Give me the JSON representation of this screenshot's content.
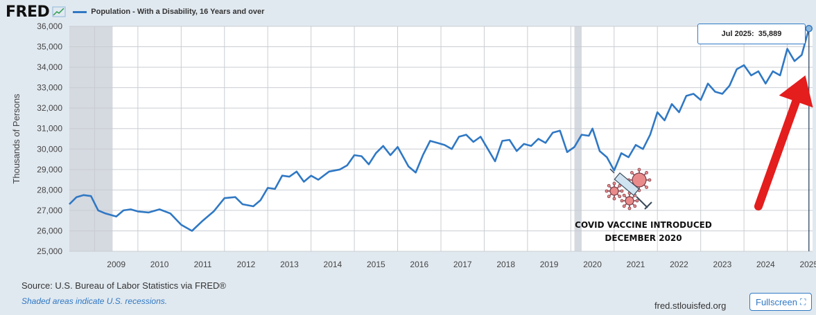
{
  "header": {
    "logo_text": "FRED",
    "legend_label": "Population - With a Disability, 16 Years and over"
  },
  "footer": {
    "source": "Source: U.S. Bureau of Labor Statistics via FRED®",
    "recession_note": "Shaded areas indicate U.S. recessions.",
    "site": "fred.stlouisfed.org",
    "fullscreen_label": "Fullscreen"
  },
  "tooltip": {
    "date": "Jul 2025:",
    "value": "35,889"
  },
  "annotation": {
    "line1": "COVID VACCINE INTRODUCED",
    "line2": "DECEMBER 2020"
  },
  "colors": {
    "series": "#2f78c4",
    "arrow": "#e41d1d",
    "background": "#e1e9f0",
    "plot": "#ffffff",
    "recession": "#d5d9e0"
  },
  "icons": [
    "chart-logo-icon",
    "virus-syringe-icon",
    "fullscreen-icon"
  ],
  "chart_data": {
    "type": "line",
    "title": "",
    "xlabel": "",
    "ylabel": "Thousands of Persons",
    "ylim": [
      25000,
      36000
    ],
    "xlim": [
      "2008-06",
      "2025-08"
    ],
    "yticks": [
      "25,000",
      "26,000",
      "27,000",
      "28,000",
      "29,000",
      "30,000",
      "31,000",
      "32,000",
      "33,000",
      "34,000",
      "35,000",
      "36,000"
    ],
    "xticks": [
      "2009",
      "2010",
      "2011",
      "2012",
      "2013",
      "2014",
      "2015",
      "2016",
      "2017",
      "2018",
      "2019",
      "2020",
      "2021",
      "2022",
      "2023",
      "2024",
      "2025"
    ],
    "grid": true,
    "recessions": [
      [
        "2008-06",
        "2009-06"
      ],
      [
        "2020-02",
        "2020-04"
      ]
    ],
    "series": [
      {
        "name": "Population - With a Disability, 16 Years and over",
        "points": [
          [
            "2008-06",
            27300
          ],
          [
            "2008-08",
            27650
          ],
          [
            "2008-10",
            27750
          ],
          [
            "2008-12",
            27700
          ],
          [
            "2009-02",
            27000
          ],
          [
            "2009-04",
            26850
          ],
          [
            "2009-07",
            26700
          ],
          [
            "2009-09",
            27000
          ],
          [
            "2009-11",
            27050
          ],
          [
            "2010-01",
            26950
          ],
          [
            "2010-04",
            26900
          ],
          [
            "2010-07",
            27050
          ],
          [
            "2010-10",
            26850
          ],
          [
            "2011-01",
            26300
          ],
          [
            "2011-04",
            26000
          ],
          [
            "2011-07",
            26500
          ],
          [
            "2011-10",
            26950
          ],
          [
            "2012-01",
            27600
          ],
          [
            "2012-04",
            27650
          ],
          [
            "2012-06",
            27300
          ],
          [
            "2012-09",
            27200
          ],
          [
            "2012-11",
            27500
          ],
          [
            "2013-01",
            28100
          ],
          [
            "2013-03",
            28050
          ],
          [
            "2013-05",
            28700
          ],
          [
            "2013-07",
            28650
          ],
          [
            "2013-09",
            28900
          ],
          [
            "2013-11",
            28400
          ],
          [
            "2014-01",
            28700
          ],
          [
            "2014-03",
            28500
          ],
          [
            "2014-06",
            28900
          ],
          [
            "2014-09",
            29000
          ],
          [
            "2014-11",
            29200
          ],
          [
            "2015-01",
            29700
          ],
          [
            "2015-03",
            29650
          ],
          [
            "2015-05",
            29250
          ],
          [
            "2015-07",
            29800
          ],
          [
            "2015-09",
            30150
          ],
          [
            "2015-11",
            29700
          ],
          [
            "2016-01",
            30100
          ],
          [
            "2016-04",
            29150
          ],
          [
            "2016-06",
            28850
          ],
          [
            "2016-08",
            29700
          ],
          [
            "2016-10",
            30400
          ],
          [
            "2016-12",
            30300
          ],
          [
            "2017-02",
            30200
          ],
          [
            "2017-04",
            30000
          ],
          [
            "2017-06",
            30600
          ],
          [
            "2017-08",
            30700
          ],
          [
            "2017-10",
            30350
          ],
          [
            "2017-12",
            30600
          ],
          [
            "2018-02",
            30000
          ],
          [
            "2018-04",
            29400
          ],
          [
            "2018-06",
            30400
          ],
          [
            "2018-08",
            30450
          ],
          [
            "2018-10",
            29900
          ],
          [
            "2018-12",
            30250
          ],
          [
            "2019-02",
            30150
          ],
          [
            "2019-04",
            30500
          ],
          [
            "2019-06",
            30300
          ],
          [
            "2019-08",
            30800
          ],
          [
            "2019-10",
            30900
          ],
          [
            "2019-12",
            29850
          ],
          [
            "2020-02",
            30100
          ],
          [
            "2020-04",
            30700
          ],
          [
            "2020-06",
            30650
          ],
          [
            "2020-07",
            31000
          ],
          [
            "2020-09",
            29900
          ],
          [
            "2020-11",
            29600
          ],
          [
            "2021-01",
            28950
          ],
          [
            "2021-03",
            29800
          ],
          [
            "2021-05",
            29600
          ],
          [
            "2021-07",
            30200
          ],
          [
            "2021-09",
            30000
          ],
          [
            "2021-11",
            30700
          ],
          [
            "2022-01",
            31800
          ],
          [
            "2022-03",
            31400
          ],
          [
            "2022-05",
            32200
          ],
          [
            "2022-07",
            31800
          ],
          [
            "2022-09",
            32600
          ],
          [
            "2022-11",
            32700
          ],
          [
            "2023-01",
            32400
          ],
          [
            "2023-03",
            33200
          ],
          [
            "2023-05",
            32800
          ],
          [
            "2023-07",
            32700
          ],
          [
            "2023-09",
            33100
          ],
          [
            "2023-11",
            33900
          ],
          [
            "2024-01",
            34100
          ],
          [
            "2024-03",
            33600
          ],
          [
            "2024-05",
            33800
          ],
          [
            "2024-07",
            33200
          ],
          [
            "2024-09",
            33800
          ],
          [
            "2024-11",
            33600
          ],
          [
            "2025-01",
            34900
          ],
          [
            "2025-03",
            34300
          ],
          [
            "2025-05",
            34600
          ],
          [
            "2025-07",
            35889
          ]
        ]
      }
    ],
    "highlight": {
      "x": "2025-07",
      "y": 35889
    },
    "annotation_arrow": {
      "from": [
        "2024-05",
        27200
      ],
      "to": [
        "2025-06",
        33600
      ]
    }
  }
}
